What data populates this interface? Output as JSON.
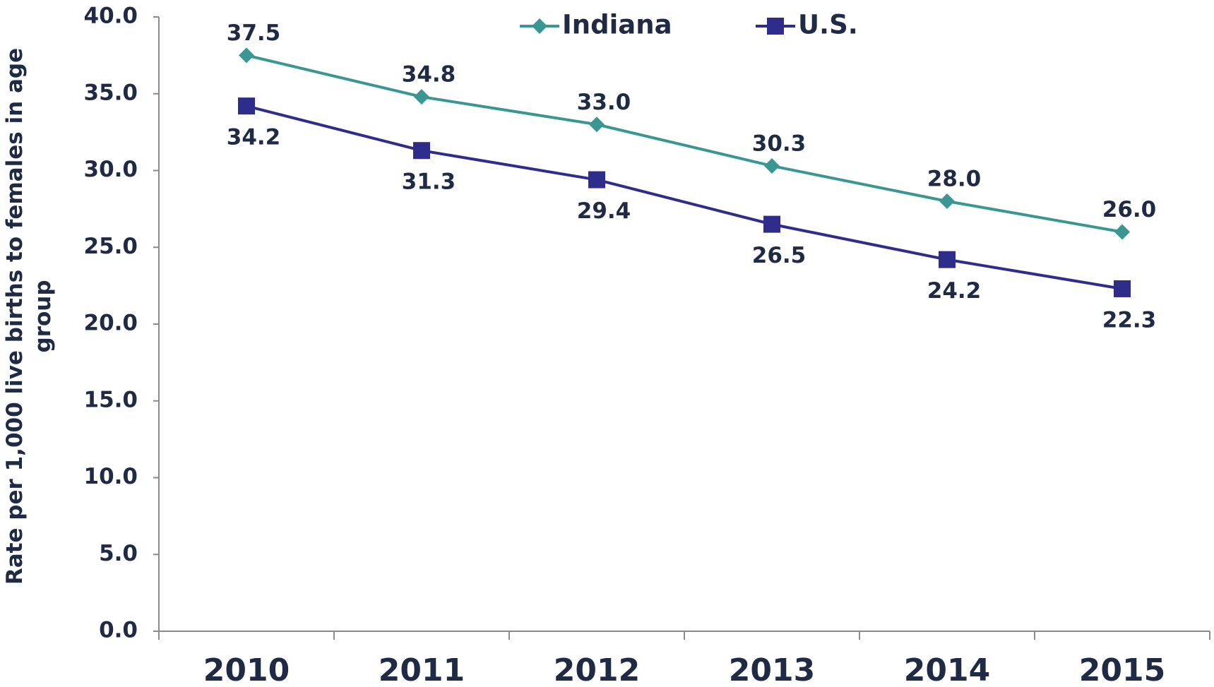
{
  "chart_data": {
    "type": "line",
    "y_label": "Rate per 1,000 live births to females in age group",
    "categories": [
      "2010",
      "2011",
      "2012",
      "2013",
      "2014",
      "2015"
    ],
    "series": [
      {
        "name": "Indiana",
        "color": "#3a9692",
        "marker": "diamond",
        "values": [
          37.5,
          34.8,
          33,
          30.3,
          28,
          26
        ],
        "value_labels": [
          "37.5",
          "34.8",
          "33.0",
          "30.3",
          "28.0",
          "26.0"
        ]
      },
      {
        "name": "U.S.",
        "color": "#2e2d8c",
        "marker": "square",
        "values": [
          34.2,
          31.3,
          29.4,
          26.5,
          24.2,
          22.3
        ],
        "value_labels": [
          "34.2",
          "31.3",
          "29.4",
          "26.5",
          "24.2",
          "22.3"
        ]
      }
    ],
    "ylim": [
      0,
      40
    ],
    "yticks": [
      {
        "value": 0,
        "label": "0.0"
      },
      {
        "value": 5,
        "label": "5.0"
      },
      {
        "value": 10,
        "label": "10.0"
      },
      {
        "value": 15,
        "label": "15.0"
      },
      {
        "value": 20,
        "label": "20.0"
      },
      {
        "value": 25,
        "label": "25.0"
      },
      {
        "value": 30,
        "label": "30.0"
      },
      {
        "value": 35,
        "label": "35.0"
      },
      {
        "value": 40,
        "label": "40.0"
      }
    ],
    "grid": false,
    "legend": "top"
  }
}
